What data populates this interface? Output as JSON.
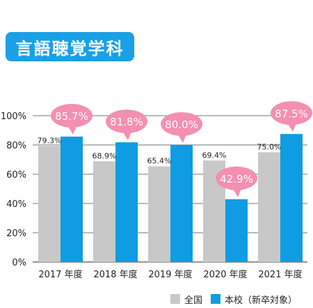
{
  "title": "言語聴覚学科",
  "chart_data": {
    "type": "bar",
    "categories": [
      "2017 年度",
      "2018 年度",
      "2019 年度",
      "2020 年度",
      "2021 年度"
    ],
    "series": [
      {
        "name": "全国",
        "values": [
          79.3,
          68.9,
          65.4,
          69.4,
          75.0
        ],
        "color": "#c8c8c8"
      },
      {
        "name": "本校（新卒対象）",
        "values": [
          85.7,
          81.8,
          80.0,
          42.9,
          87.5
        ],
        "color": "#0f9ce3"
      }
    ],
    "labels_national": [
      "79.3%",
      "68.9%",
      "65.4%",
      "69.4%",
      "75.0%"
    ],
    "labels_school": [
      "85.7%",
      "81.8%",
      "80.0%",
      "42.9%",
      "87.5%"
    ],
    "yticks": [
      "0%",
      "20%",
      "40%",
      "60%",
      "80%",
      "100%"
    ],
    "ylim": [
      0,
      100
    ],
    "grid": true,
    "legend_position": "bottom-right",
    "bubble_color": "#f48fb1"
  }
}
